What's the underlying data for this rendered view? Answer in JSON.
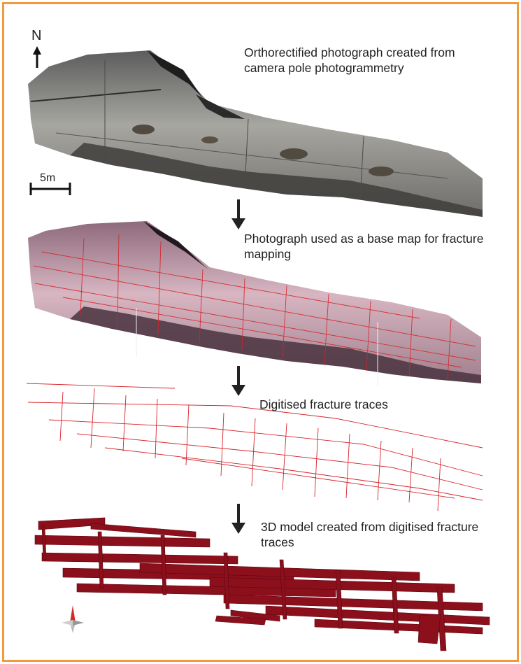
{
  "north_label": "N",
  "scale_label": "5m",
  "steps": [
    {
      "text": "Orthorectified photograph created from camera pole photogrammetry"
    },
    {
      "text": "Photograph used as a base map for fracture mapping"
    },
    {
      "text": "Digitised fracture traces"
    },
    {
      "text": "3D model created from digitised fracture traces"
    }
  ],
  "colors": {
    "border": "#ef9a3c",
    "photo": "#8a8a86",
    "basemap": "#c9a4b3",
    "traces": "#d8232a",
    "model": "#8c0f1c"
  }
}
